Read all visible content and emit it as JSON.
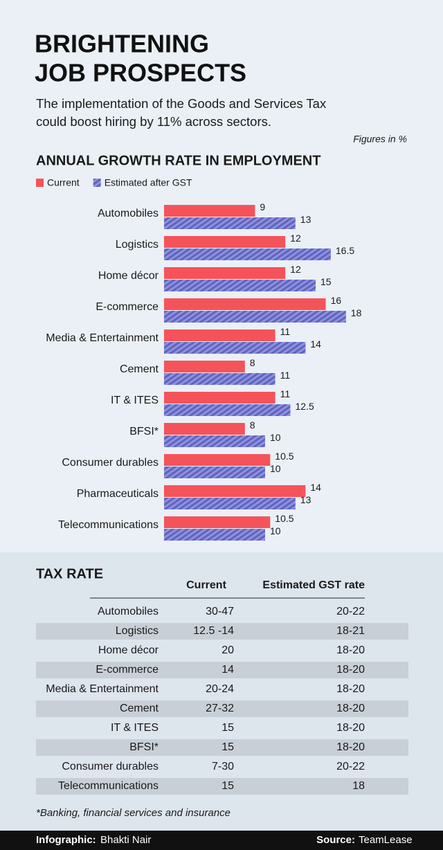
{
  "header": {
    "title_lines": [
      "BRIGHTENING",
      "JOB PROSPECTS"
    ],
    "subtitle_lines": [
      "The implementation of the Goods and Services Tax",
      "could boost hiring by 11% across sectors."
    ],
    "note": "Figures in %"
  },
  "chart_data": {
    "type": "hbar",
    "title": "ANNUAL GROWTH RATE IN EMPLOYMENT",
    "categories": [
      "Automobiles",
      "Logistics",
      "Home décor",
      "E-commerce",
      "Media & Entertainment",
      "Cement",
      "IT & ITES",
      "BFSI*",
      "Consumer durables",
      "Pharmaceuticals",
      "Telecommunications"
    ],
    "series": [
      {
        "name": "Current",
        "color": "#f5535a",
        "values": [
          9,
          12,
          12,
          16,
          11,
          8,
          11,
          8,
          10.5,
          14,
          10.5
        ]
      },
      {
        "name": "Estimated after GST",
        "color": "#5f63c4",
        "pattern": "hatched",
        "values": [
          13,
          16.5,
          15,
          18,
          14,
          11,
          12.5,
          10,
          10,
          13,
          10
        ]
      }
    ],
    "legend": "top-left"
  },
  "table": {
    "title": "TAX RATE",
    "columns": [
      "Current",
      "Estimated GST rate"
    ],
    "rows": [
      [
        "Automobiles",
        "30-47",
        "20-22"
      ],
      [
        "Logistics",
        "12.5 -14",
        "18-21"
      ],
      [
        "Home décor",
        "20",
        "18-20"
      ],
      [
        "E-commerce",
        "14",
        "18-20"
      ],
      [
        "Media & Entertainment",
        "20-24",
        "18-20"
      ],
      [
        "Cement",
        "27-32",
        "18-20"
      ],
      [
        "IT & ITES",
        "15",
        "18-20"
      ],
      [
        "BFSI*",
        "15",
        "18-20"
      ],
      [
        "Consumer durables",
        "7-30",
        "20-22"
      ],
      [
        "Telecommunications",
        "15",
        "18"
      ]
    ],
    "footnote": "*Banking, financial services and insurance"
  },
  "footer": {
    "credit_label": "Infographic:",
    "credit": "Bhakti Nair",
    "source_label": "Source:",
    "source": "TeamLease"
  }
}
